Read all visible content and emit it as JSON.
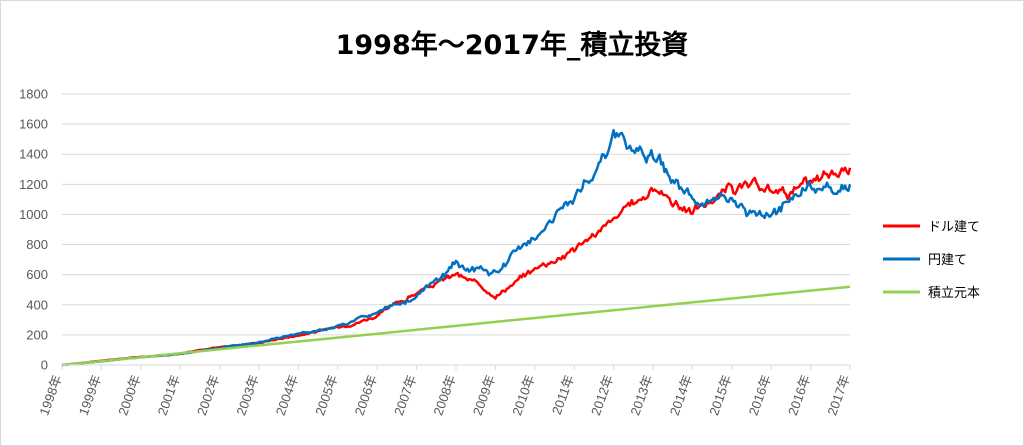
{
  "chart_data": {
    "type": "line",
    "title": "1998年〜2017年_積立投資",
    "xlabel": "",
    "ylabel": "",
    "ylim": [
      0,
      1800
    ],
    "yticks": [
      0,
      200,
      400,
      600,
      800,
      1000,
      1200,
      1400,
      1600,
      1800
    ],
    "categories": [
      "1998年",
      "1999年",
      "2000年",
      "2001年",
      "2002年",
      "2003年",
      "2004年",
      "2005年",
      "2006年",
      "2007年",
      "2008年",
      "2009年",
      "2010年",
      "2011年",
      "2012年",
      "2013年",
      "2014年",
      "2015年",
      "2016年",
      "2016年",
      "2017年"
    ],
    "grid": true,
    "legend": "right",
    "series": [
      {
        "name": "ドル建て",
        "color": "#ff0000",
        "values": [
          0,
          28,
          55,
          75,
          120,
          150,
          200,
          250,
          330,
          480,
          600,
          470,
          640,
          780,
          950,
          1180,
          1020,
          1180,
          1150,
          1180,
          1310
        ]
      },
      {
        "name": "円建て",
        "color": "#0070c0",
        "values": [
          0,
          25,
          52,
          75,
          110,
          150,
          210,
          255,
          345,
          450,
          660,
          600,
          870,
          1100,
          1480,
          1430,
          1100,
          1060,
          1000,
          1180,
          1200
        ]
      },
      {
        "name": "積立元本",
        "color": "#92d050",
        "values": [
          0,
          26,
          52,
          78,
          104,
          130,
          156,
          182,
          208,
          234,
          260,
          286,
          312,
          338,
          364,
          390,
          416,
          442,
          468,
          494,
          520
        ]
      }
    ]
  }
}
